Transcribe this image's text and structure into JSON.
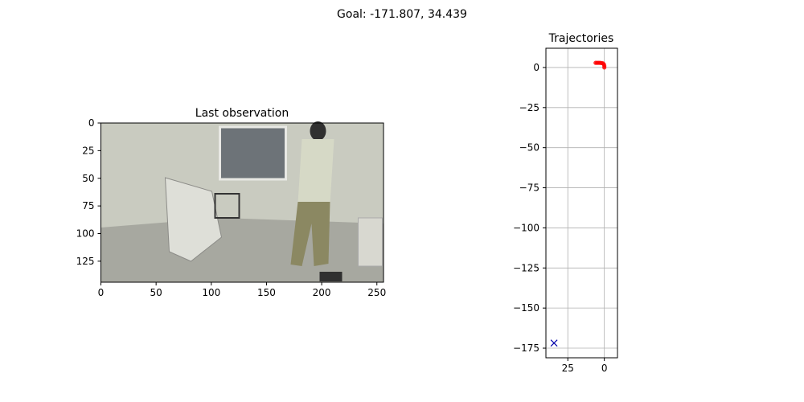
{
  "figure": {
    "suptitle": "Goal: -171.807, 34.439"
  },
  "chart_data": [
    {
      "type": "image",
      "title": "Last observation",
      "xlabel": "",
      "ylabel": "",
      "xlim": [
        0,
        256
      ],
      "ylim": [
        144,
        0
      ],
      "xticks": [
        0,
        50,
        100,
        150,
        200,
        250
      ],
      "yticks": [
        0,
        25,
        50,
        75,
        100,
        125
      ],
      "image_description_colors": {
        "wall": "#c9cbc0",
        "floor": "#a7a8a0",
        "shirt": "#d6d9c6",
        "pants": "#8b8862",
        "dark": "#303030"
      }
    },
    {
      "type": "scatter",
      "title": "Trajectories",
      "xlabel": "",
      "ylabel": "",
      "xlim": [
        40,
        -9
      ],
      "ylim": [
        -181,
        12
      ],
      "xticks": [
        25,
        0
      ],
      "yticks": [
        0,
        -25,
        -50,
        -75,
        -100,
        -125,
        -150,
        -175
      ],
      "grid": true,
      "series": [
        {
          "color": "#ff0000",
          "marker": "circle",
          "points": [
            [
              0.0,
              0.0
            ],
            [
              0.0,
              1.0
            ],
            [
              0.3,
              2.0
            ],
            [
              1.0,
              2.6
            ],
            [
              2.0,
              2.8
            ],
            [
              3.0,
              2.9
            ],
            [
              4.0,
              2.9
            ],
            [
              5.0,
              2.9
            ],
            [
              6.0,
              2.9
            ]
          ]
        },
        {
          "color": "#0000aa",
          "marker": "x",
          "points": [
            [
              34.439,
              -171.807
            ]
          ]
        }
      ]
    }
  ]
}
